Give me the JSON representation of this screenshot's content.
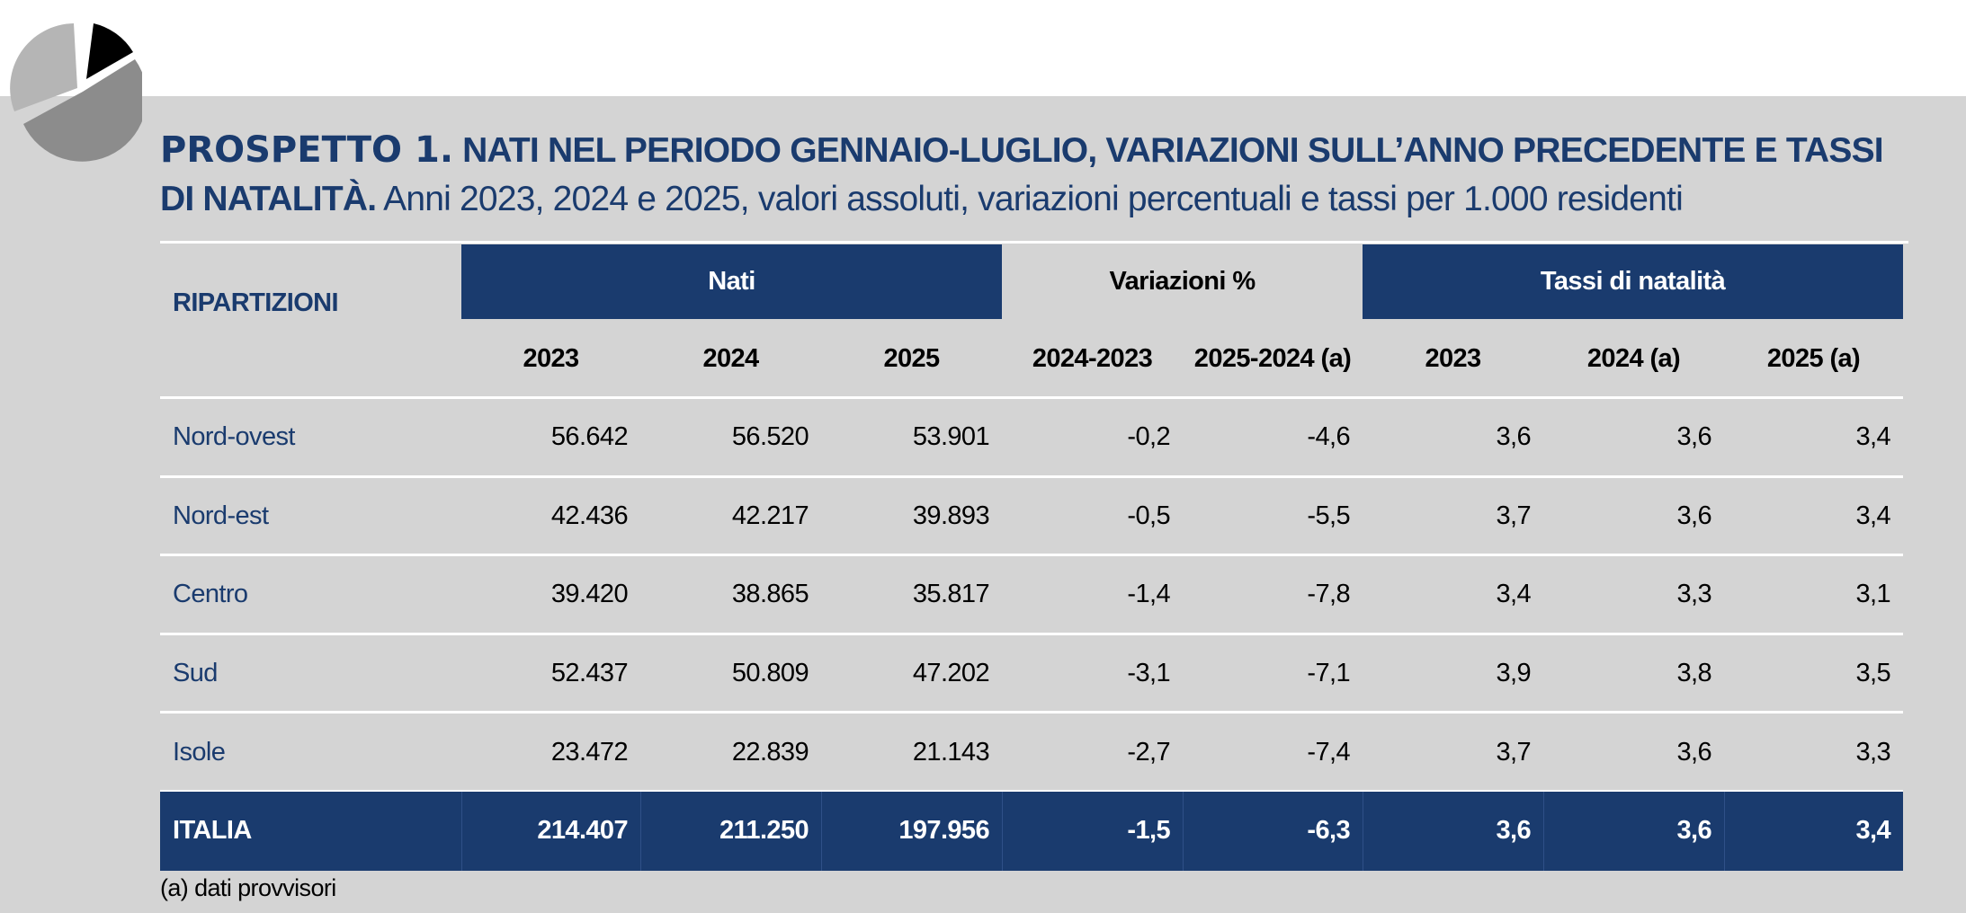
{
  "title": {
    "label": "PROSPETTO 1.",
    "heading": "NATI NEL PERIODO GENNAIO-LUGLIO, VARIAZIONI SULL’ANNO PRECEDENTE E TASSI DI NATALITÀ.",
    "subheading": "Anni 2023, 2024 e 2025, valori assoluti, variazioni percentuali e tassi per 1.000 residenti"
  },
  "table": {
    "row_header": "RIPARTIZIONI",
    "groups": [
      {
        "name": "Nati",
        "columns": [
          "2023",
          "2024",
          "2025"
        ]
      },
      {
        "name": "Variazioni %",
        "columns": [
          "2024-2023",
          "2025-2024 (a)"
        ]
      },
      {
        "name": "Tassi di natalità",
        "columns": [
          "2023",
          "2024 (a)",
          "2025 (a)"
        ]
      }
    ],
    "rows": [
      [
        "Nord-ovest",
        "56.642",
        "56.520",
        "53.901",
        "-0,2",
        "-4,6",
        "3,6",
        "3,6",
        "3,4"
      ],
      [
        "Nord-est",
        "42.436",
        "42.217",
        "39.893",
        "-0,5",
        "-5,5",
        "3,7",
        "3,6",
        "3,4"
      ],
      [
        "Centro",
        "39.420",
        "38.865",
        "35.817",
        "-1,4",
        "-7,8",
        "3,4",
        "3,3",
        "3,1"
      ],
      [
        "Sud",
        "52.437",
        "50.809",
        "47.202",
        "-3,1",
        "-7,1",
        "3,9",
        "3,8",
        "3,5"
      ],
      [
        "Isole",
        "23.472",
        "22.839",
        "21.143",
        "-2,7",
        "-7,4",
        "3,7",
        "3,6",
        "3,3"
      ]
    ],
    "total": [
      "ITALIA",
      "214.407",
      "211.250",
      "197.956",
      "-1,5",
      "-6,3",
      "3,6",
      "3,6",
      "3,4"
    ]
  },
  "footnote": "(a) dati provvisori"
}
